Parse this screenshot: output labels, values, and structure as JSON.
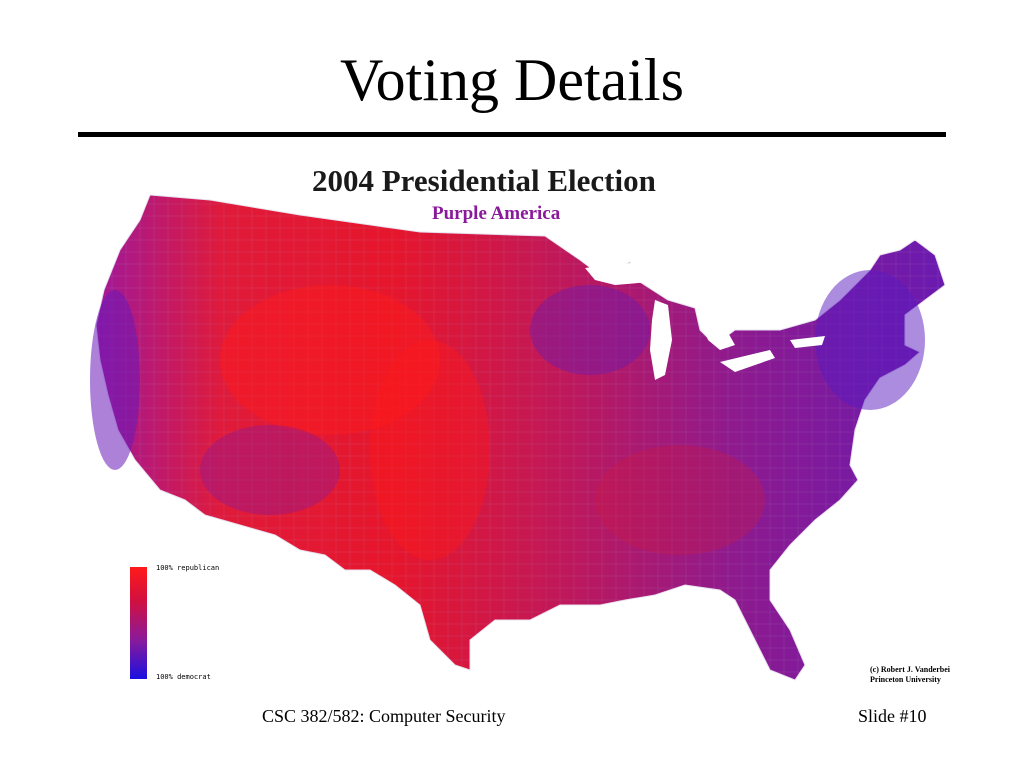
{
  "slide": {
    "title": "Voting Details",
    "footer_course": "CSC 382/582: Computer Security",
    "footer_slide": "Slide #10"
  },
  "map": {
    "title": "2004 Presidential Election",
    "subtitle": "Purple America",
    "legend_max_label": "100% republican",
    "legend_min_label": "100% democrat",
    "credit_line1": "(c) Robert J. Vanderbei",
    "credit_line2": "Princeton University",
    "colors": {
      "republican": "#ff1a1a",
      "mixed": "#8a1a9a",
      "democrat": "#1a10e0"
    }
  }
}
